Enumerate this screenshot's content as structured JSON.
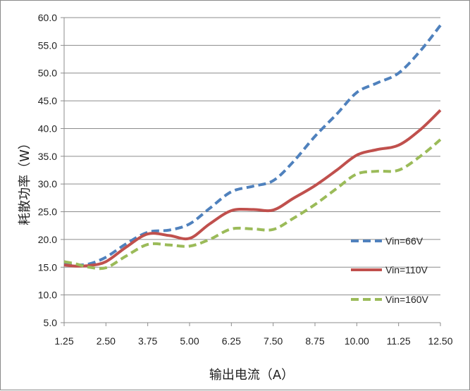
{
  "chart_data": {
    "type": "line",
    "title": "",
    "xlabel": "输出电流（A）",
    "ylabel": "耗散功率（W）",
    "x": [
      1.25,
      2.5,
      3.75,
      5.0,
      6.25,
      7.5,
      8.75,
      10.0,
      11.25,
      12.5
    ],
    "x_tick_labels": [
      "1.25",
      "2.50",
      "3.75",
      "5.00",
      "6.25",
      "7.50",
      "8.75",
      "10.00",
      "11.25",
      "12.50"
    ],
    "y_tick_labels": [
      "5.0",
      "10.0",
      "15.0",
      "20.0",
      "25.0",
      "30.0",
      "35.0",
      "40.0",
      "45.0",
      "50.0",
      "55.0",
      "60.0"
    ],
    "ylim": [
      5.0,
      60.0
    ],
    "xlim": [
      1.25,
      12.5
    ],
    "grid": "horizontal",
    "legend_position": "right",
    "series": [
      {
        "name": "Vin=66V",
        "color": "#4f81bd",
        "style": "dashed",
        "x": [
          1.25,
          1.6,
          2.0,
          2.5,
          3.1,
          3.75,
          4.4,
          5.0,
          5.6,
          6.25,
          6.9,
          7.5,
          8.1,
          8.75,
          9.4,
          10.0,
          10.6,
          11.25,
          11.9,
          12.5
        ],
        "values": [
          15.5,
          15.4,
          15.6,
          16.8,
          19.2,
          21.3,
          21.7,
          22.8,
          25.6,
          28.6,
          29.6,
          30.6,
          34.0,
          38.6,
          42.6,
          46.5,
          48.2,
          50.0,
          54.0,
          58.6
        ]
      },
      {
        "name": "Vin=110V",
        "color": "#c0504d",
        "style": "solid",
        "x": [
          1.25,
          1.6,
          2.0,
          2.5,
          3.1,
          3.75,
          4.4,
          5.0,
          5.6,
          6.25,
          6.9,
          7.5,
          8.1,
          8.75,
          9.4,
          10.0,
          10.6,
          11.25,
          11.9,
          12.5
        ],
        "values": [
          15.4,
          15.2,
          15.3,
          16.0,
          18.6,
          21.0,
          20.7,
          20.2,
          22.8,
          25.2,
          25.4,
          25.3,
          27.4,
          29.7,
          32.5,
          35.2,
          36.2,
          37.0,
          39.8,
          43.3
        ]
      },
      {
        "name": "Vin=160V",
        "color": "#9bbb59",
        "style": "dashed",
        "x": [
          1.25,
          1.6,
          2.0,
          2.5,
          3.1,
          3.75,
          4.4,
          5.0,
          5.6,
          6.25,
          6.9,
          7.5,
          8.1,
          8.75,
          9.4,
          10.0,
          10.6,
          11.25,
          11.9,
          12.5
        ],
        "values": [
          16.0,
          15.6,
          15.0,
          14.9,
          17.0,
          19.1,
          19.0,
          18.8,
          20.0,
          21.9,
          21.9,
          21.8,
          23.8,
          26.3,
          29.2,
          31.8,
          32.3,
          32.5,
          35.0,
          38.0
        ]
      }
    ]
  }
}
